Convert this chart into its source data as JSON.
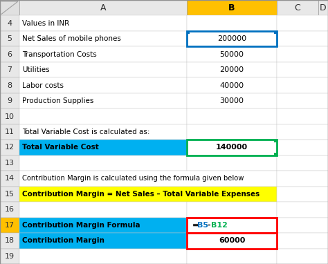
{
  "rows": [
    {
      "row": 4,
      "col_a": "Values in INR",
      "col_b": "",
      "bg_a": "#ffffff",
      "bg_b": "#ffffff",
      "bold_a": false,
      "bold_b": false
    },
    {
      "row": 5,
      "col_a": "Net Sales of mobile phones",
      "col_b": "200000",
      "bg_a": "#ffffff",
      "bg_b": "#ffffff",
      "bold_a": false,
      "bold_b": false
    },
    {
      "row": 6,
      "col_a": "Transportation Costs",
      "col_b": "50000",
      "bg_a": "#ffffff",
      "bg_b": "#ffffff",
      "bold_a": false,
      "bold_b": false
    },
    {
      "row": 7,
      "col_a": "Utilities",
      "col_b": "20000",
      "bg_a": "#ffffff",
      "bg_b": "#ffffff",
      "bold_a": false,
      "bold_b": false
    },
    {
      "row": 8,
      "col_a": "Labor costs",
      "col_b": "40000",
      "bg_a": "#ffffff",
      "bg_b": "#ffffff",
      "bold_a": false,
      "bold_b": false
    },
    {
      "row": 9,
      "col_a": "Production Supplies",
      "col_b": "30000",
      "bg_a": "#ffffff",
      "bg_b": "#ffffff",
      "bold_a": false,
      "bold_b": false
    },
    {
      "row": 10,
      "col_a": "",
      "col_b": "",
      "bg_a": "#ffffff",
      "bg_b": "#ffffff",
      "bold_a": false,
      "bold_b": false
    },
    {
      "row": 11,
      "col_a": "Total Variable Cost is calculated as:",
      "col_b": "",
      "bg_a": "#ffffff",
      "bg_b": "#ffffff",
      "bold_a": false,
      "bold_b": false
    },
    {
      "row": 12,
      "col_a": "Total Variable Cost",
      "col_b": "140000",
      "bg_a": "#00b0f0",
      "bg_b": "#ffffff",
      "bold_a": true,
      "bold_b": true
    },
    {
      "row": 13,
      "col_a": "",
      "col_b": "",
      "bg_a": "#ffffff",
      "bg_b": "#ffffff",
      "bold_a": false,
      "bold_b": false
    },
    {
      "row": 14,
      "col_a": "Contribution Margin is calculated using the formula given below",
      "col_b": "",
      "bg_a": "#ffffff",
      "bg_b": "#ffffff",
      "bold_a": false,
      "bold_b": false
    },
    {
      "row": 15,
      "col_a": "Contribution Margin = Net Sales – Total Variable Expenses",
      "col_b": "",
      "bg_a": "#ffff00",
      "bg_b": "#ffff00",
      "bold_a": true,
      "bold_b": false
    },
    {
      "row": 16,
      "col_a": "",
      "col_b": "",
      "bg_a": "#ffffff",
      "bg_b": "#ffffff",
      "bold_a": false,
      "bold_b": false
    },
    {
      "row": 17,
      "col_a": "Contribution Margin Formula",
      "col_b": "=B5-B12",
      "bg_a": "#00b0f0",
      "bg_b": "#ffffff",
      "bold_a": true,
      "bold_b": true,
      "formula": true
    },
    {
      "row": 18,
      "col_a": "Contribution Margin",
      "col_b": "60000",
      "bg_a": "#00b0f0",
      "bg_b": "#ffffff",
      "bold_a": true,
      "bold_b": true
    },
    {
      "row": 19,
      "col_a": "",
      "col_b": "",
      "bg_a": "#ffffff",
      "bg_b": "#ffffff",
      "bold_a": false,
      "bold_b": false
    }
  ],
  "header_col_b_bg": "#ffc000",
  "fig_bg": "#d8d8d8",
  "blue_border_color": "#0070c0",
  "green_border_color": "#00b050",
  "red_border_color": "#ff0000",
  "formula_b5_color": "#0070c0",
  "formula_b12_color": "#00b050",
  "row_17_num_bg": "#ffc000"
}
